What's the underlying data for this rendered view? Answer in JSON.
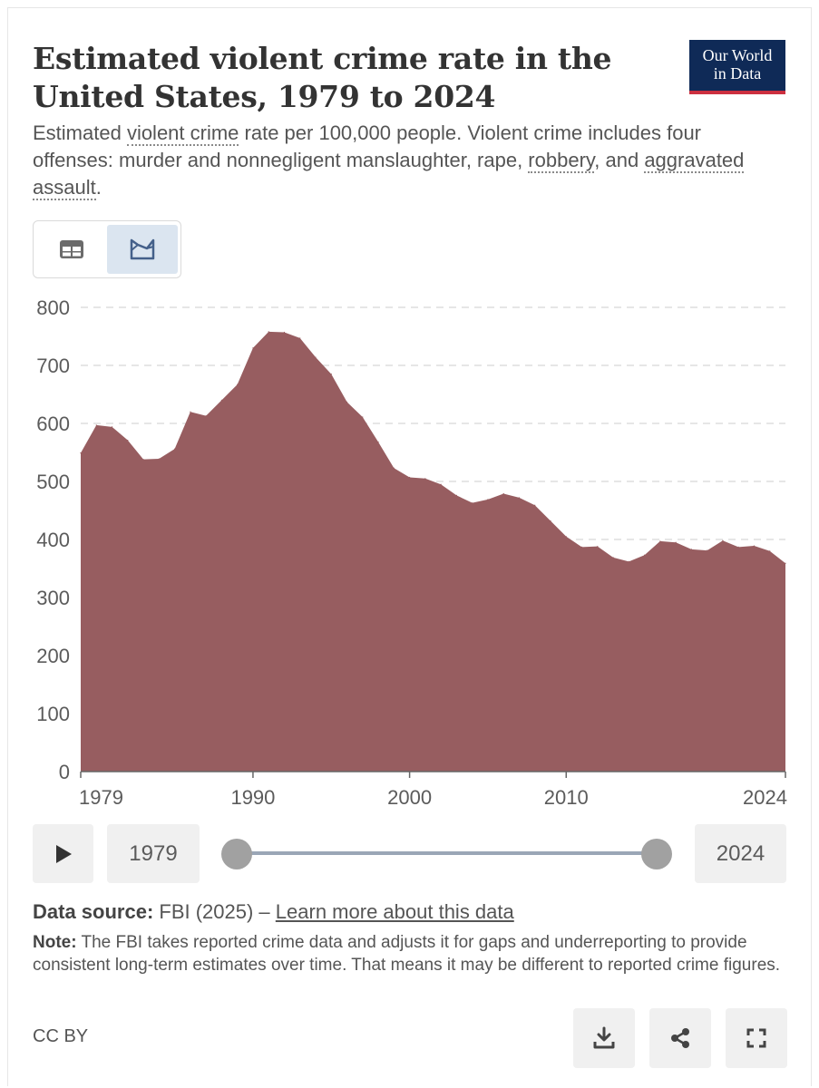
{
  "title": "Estimated violent crime rate in the United States, 1979 to 2024",
  "logo": {
    "line1": "Our World",
    "line2": "in Data"
  },
  "subtitle": {
    "p1": "Estimated ",
    "link1": "violent crime",
    "p2": " rate per 100,000 people. Violent crime includes four offenses: murder and nonnegligent manslaughter, rape, ",
    "link2": "robbery",
    "p3": ", and ",
    "link3": "aggravated assault",
    "p4": "."
  },
  "view_toggle": {
    "table_icon": "table-icon",
    "chart_icon": "chart-icon",
    "selected": "chart"
  },
  "chart_data": {
    "type": "area",
    "title": "Estimated violent crime rate in the United States, 1979 to 2024",
    "xlabel": "",
    "ylabel": "",
    "x": [
      1979,
      1980,
      1981,
      1982,
      1983,
      1984,
      1985,
      1986,
      1987,
      1988,
      1989,
      1990,
      1991,
      1992,
      1993,
      1994,
      1995,
      1996,
      1997,
      1998,
      1999,
      2000,
      2001,
      2002,
      2003,
      2004,
      2005,
      2006,
      2007,
      2008,
      2009,
      2010,
      2011,
      2012,
      2013,
      2014,
      2015,
      2016,
      2017,
      2018,
      2019,
      2020,
      2021,
      2022,
      2023,
      2024
    ],
    "series": [
      {
        "values": [
          549,
          597,
          594,
          571,
          538,
          539,
          556,
          620,
          613,
          640,
          667,
          730,
          758,
          757,
          747,
          714,
          685,
          637,
          611,
          568,
          523,
          507,
          505,
          495,
          476,
          463,
          469,
          479,
          472,
          459,
          432,
          405,
          387,
          388,
          369,
          362,
          373,
          397,
          395,
          383,
          381,
          398,
          387,
          389,
          380,
          359
        ],
        "color": "#975d60"
      }
    ],
    "ylim": [
      0,
      800
    ],
    "xlim": [
      1979,
      2024
    ],
    "yticks": [
      0,
      100,
      200,
      300,
      400,
      500,
      600,
      700,
      800
    ],
    "xticks": [
      1979,
      1990,
      2000,
      2010,
      2024
    ],
    "grid": "horizontal dashed",
    "legend": "none"
  },
  "timeline": {
    "play_icon": "play-icon",
    "start_year": "1979",
    "end_year": "2024"
  },
  "source": {
    "label": "Data source:",
    "text": " FBI (2025) – ",
    "link": "Learn more about this data"
  },
  "note": {
    "label": "Note:",
    "text": " The FBI takes reported crime data and adjusts it for gaps and underreporting to provide consistent long-term estimates over time. That means it may be different to reported crime figures."
  },
  "license": "CC BY",
  "actions": {
    "download_icon": "download-icon",
    "share_icon": "share-icon",
    "fullscreen_icon": "fullscreen-icon"
  },
  "colors": {
    "area": "#975d60",
    "logo_bg": "#0f2a57",
    "logo_accent": "#cc3040",
    "toggle_selected": "#dbe5f0"
  }
}
